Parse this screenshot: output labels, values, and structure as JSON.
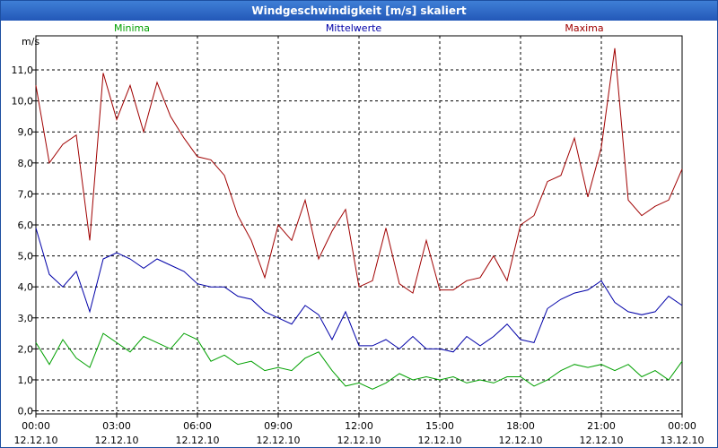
{
  "window": {
    "title": "Windgeschwindigkeit [m/s] skaliert"
  },
  "chart_data": {
    "type": "line",
    "title": "Windgeschwindigkeit [m/s] skaliert",
    "ylabel": "m/s",
    "xlabel": "",
    "ylim": [
      -0.1,
      12.1
    ],
    "xlim": [
      0,
      24
    ],
    "grid": true,
    "legend_position": "top",
    "y_ticks": [
      0,
      1,
      2,
      3,
      4,
      5,
      6,
      7,
      8,
      9,
      10,
      11
    ],
    "y_tick_labels": [
      "0,0",
      "1,0",
      "2,0",
      "3,0",
      "4,0",
      "5,0",
      "6,0",
      "7,0",
      "8,0",
      "9,0",
      "10,0",
      "11,0"
    ],
    "x_ticks": [
      0,
      3,
      6,
      9,
      12,
      15,
      18,
      21,
      24
    ],
    "x_tick_labels": [
      {
        "time": "00:00",
        "date": "12.12.10"
      },
      {
        "time": "03:00",
        "date": "12.12.10"
      },
      {
        "time": "06:00",
        "date": "12.12.10"
      },
      {
        "time": "09:00",
        "date": "12.12.10"
      },
      {
        "time": "12:00",
        "date": "12.12.10"
      },
      {
        "time": "15:00",
        "date": "12.12.10"
      },
      {
        "time": "18:00",
        "date": "12.12.10"
      },
      {
        "time": "21:00",
        "date": "12.12.10"
      },
      {
        "time": "00:00",
        "date": "13.12.10"
      }
    ],
    "series": [
      {
        "name": "Minima",
        "color": "#00a000",
        "x": [
          0,
          0.5,
          1,
          1.5,
          2,
          2.5,
          3,
          3.5,
          4,
          4.5,
          5,
          5.5,
          6,
          6.5,
          7,
          7.5,
          8,
          8.5,
          9,
          9.5,
          10,
          10.5,
          11,
          11.5,
          12,
          12.5,
          13,
          13.5,
          14,
          14.5,
          15,
          15.5,
          16,
          16.5,
          17,
          17.5,
          18,
          18.5,
          19,
          19.5,
          20,
          20.5,
          21,
          21.5,
          22,
          22.5,
          23,
          23.5,
          24
        ],
        "values": [
          2.2,
          1.5,
          2.3,
          1.7,
          1.4,
          2.5,
          2.2,
          1.9,
          2.4,
          2.2,
          2.0,
          2.5,
          2.3,
          1.6,
          1.8,
          1.5,
          1.6,
          1.3,
          1.4,
          1.3,
          1.7,
          1.9,
          1.3,
          0.8,
          0.9,
          0.7,
          0.9,
          1.2,
          1.0,
          1.1,
          1.0,
          1.1,
          0.9,
          1.0,
          0.9,
          1.1,
          1.1,
          0.8,
          1.0,
          1.3,
          1.5,
          1.4,
          1.5,
          1.3,
          1.5,
          1.1,
          1.3,
          1.0,
          1.6
        ]
      },
      {
        "name": "Mittelwerte",
        "color": "#0000a8",
        "x": [
          0,
          0.5,
          1,
          1.5,
          2,
          2.5,
          3,
          3.5,
          4,
          4.5,
          5,
          5.5,
          6,
          6.5,
          7,
          7.5,
          8,
          8.5,
          9,
          9.5,
          10,
          10.5,
          11,
          11.5,
          12,
          12.5,
          13,
          13.5,
          14,
          14.5,
          15,
          15.5,
          16,
          16.5,
          17,
          17.5,
          18,
          18.5,
          19,
          19.5,
          20,
          20.5,
          21,
          21.5,
          22,
          22.5,
          23,
          23.5,
          24
        ],
        "values": [
          5.9,
          4.4,
          4.0,
          4.5,
          3.2,
          4.9,
          5.1,
          4.9,
          4.6,
          4.9,
          4.7,
          4.5,
          4.1,
          4.0,
          4.0,
          3.7,
          3.6,
          3.2,
          3.0,
          2.8,
          3.4,
          3.1,
          2.3,
          3.2,
          2.1,
          2.1,
          2.3,
          2.0,
          2.4,
          2.0,
          2.0,
          1.9,
          2.4,
          2.1,
          2.4,
          2.8,
          2.3,
          2.2,
          3.3,
          3.6,
          3.8,
          3.9,
          4.2,
          3.5,
          3.2,
          3.1,
          3.2,
          3.7,
          3.4
        ]
      },
      {
        "name": "Maxima",
        "color": "#a00000",
        "x": [
          0,
          0.5,
          1,
          1.5,
          2,
          2.5,
          3,
          3.5,
          4,
          4.5,
          5,
          5.5,
          6,
          6.5,
          7,
          7.5,
          8,
          8.5,
          9,
          9.5,
          10,
          10.5,
          11,
          11.5,
          12,
          12.5,
          13,
          13.5,
          14,
          14.5,
          15,
          15.5,
          16,
          16.5,
          17,
          17.5,
          18,
          18.5,
          19,
          19.5,
          20,
          20.5,
          21,
          21.5,
          22,
          22.5,
          23,
          23.5,
          24
        ],
        "values": [
          10.5,
          8.0,
          8.6,
          8.9,
          5.5,
          10.9,
          9.4,
          10.5,
          9.0,
          10.6,
          9.5,
          8.8,
          8.2,
          8.1,
          7.6,
          6.3,
          5.5,
          4.3,
          6.0,
          5.5,
          6.8,
          4.9,
          5.8,
          6.5,
          4.0,
          4.2,
          5.9,
          4.1,
          3.8,
          5.5,
          3.9,
          3.9,
          4.2,
          4.3,
          5.0,
          4.2,
          6.0,
          6.3,
          7.4,
          7.6,
          8.8,
          6.9,
          8.5,
          11.7,
          6.8,
          6.3,
          6.6,
          6.8,
          7.8
        ]
      }
    ]
  }
}
